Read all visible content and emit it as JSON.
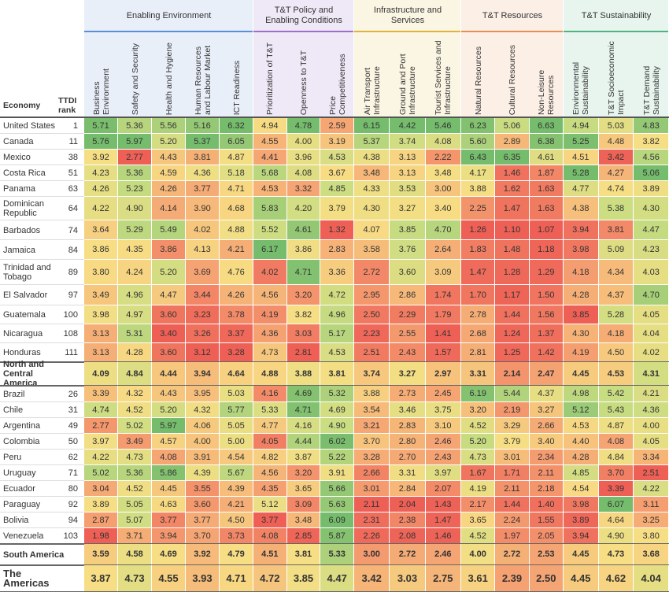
{
  "table": {
    "header": {
      "economy": "Economy",
      "rank": "TTDI rank"
    },
    "groups": [
      {
        "title": "Enabling Environment",
        "columns": [
          "Business Environment",
          "Safety and Security",
          "Health and Hygiene",
          "Human Resources and Labour Market",
          "ICT Readiness"
        ]
      },
      {
        "title": "T&T Policy and Enabling Conditions",
        "columns": [
          "Prioritization of T&T",
          "Openness to T&T",
          "Price Competitiveness"
        ]
      },
      {
        "title": "Infrastructure and Services",
        "columns": [
          "Air Transport Infrastructure",
          "Ground and Port Infrastructure",
          "Tourist Services and Infrastructure"
        ]
      },
      {
        "title": "T&T Resources",
        "columns": [
          "Natural Resources",
          "Cultural Resources",
          "Non-Leisure Resources"
        ]
      },
      {
        "title": "T&T Sustainability",
        "columns": [
          "Environmental Sustainability",
          "T&T Socioeconomic Impact",
          "T&T Demand Sustainability"
        ]
      }
    ],
    "rows": [
      {
        "economy": "United States",
        "rank": 1,
        "values": [
          "5.71",
          "5.36",
          "5.56",
          "5.16",
          "6.32",
          "4.94",
          "4.78",
          "2.59",
          "6.15",
          "4.42",
          "5.46",
          "6.23",
          "5.06",
          "6.63",
          "4.94",
          "5.03",
          "4.83"
        ]
      },
      {
        "economy": "Canada",
        "rank": 11,
        "values": [
          "5.76",
          "5.97",
          "5.20",
          "5.37",
          "6.05",
          "4.55",
          "4.00",
          "3.19",
          "5.37",
          "3.74",
          "4.08",
          "5.60",
          "2.89",
          "6.38",
          "5.25",
          "4.48",
          "3.82"
        ]
      },
      {
        "economy": "Mexico",
        "rank": 38,
        "values": [
          "3.92",
          "2.77",
          "4.43",
          "3.81",
          "4.87",
          "4.41",
          "3.96",
          "4.53",
          "4.38",
          "3.13",
          "2.22",
          "6.43",
          "6.35",
          "4.61",
          "4.51",
          "3.42",
          "4.56"
        ]
      },
      {
        "economy": "Costa Rica",
        "rank": 51,
        "values": [
          "4.23",
          "5.36",
          "4.59",
          "4.36",
          "5.18",
          "5.68",
          "4.08",
          "3.67",
          "3.48",
          "3.13",
          "3.48",
          "4.17",
          "1.46",
          "1.87",
          "5.28",
          "4.27",
          "5.06"
        ]
      },
      {
        "economy": "Panama",
        "rank": 63,
        "values": [
          "4.26",
          "5.23",
          "4.26",
          "3.77",
          "4.71",
          "4.53",
          "3.32",
          "4.85",
          "4.33",
          "3.53",
          "3.00",
          "3.88",
          "1.62",
          "1.63",
          "4.77",
          "4.74",
          "3.89"
        ]
      },
      {
        "economy": "Dominican Republic",
        "rank": 64,
        "values": [
          "4.22",
          "4.90",
          "4.14",
          "3.90",
          "4.68",
          "5.83",
          "4.20",
          "3.79",
          "4.30",
          "3.27",
          "3.40",
          "2.25",
          "1.47",
          "1.63",
          "4.38",
          "5.38",
          "4.30"
        ]
      },
      {
        "economy": "Barbados",
        "rank": 74,
        "values": [
          "3.64",
          "5.29",
          "5.49",
          "4.02",
          "4.88",
          "5.52",
          "4.61",
          "1.32",
          "4.07",
          "3.85",
          "4.70",
          "1.26",
          "1.10",
          "1.07",
          "3.94",
          "3.81",
          "4.47"
        ]
      },
      {
        "economy": "Jamaica",
        "rank": 84,
        "values": [
          "3.86",
          "4.35",
          "3.86",
          "4.13",
          "4.21",
          "6.17",
          "3.86",
          "2.83",
          "3.58",
          "3.76",
          "2.64",
          "1.83",
          "1.48",
          "1.18",
          "3.98",
          "5.09",
          "4.23"
        ]
      },
      {
        "economy": "Trinidad and Tobago",
        "rank": 89,
        "values": [
          "3.80",
          "4.24",
          "5.20",
          "3.69",
          "4.76",
          "4.02",
          "4.71",
          "3.36",
          "2.72",
          "3.60",
          "3.09",
          "1.47",
          "1.28",
          "1.29",
          "4.18",
          "4.34",
          "4.03"
        ]
      },
      {
        "economy": "El Salvador",
        "rank": 97,
        "values": [
          "3.49",
          "4.96",
          "4.47",
          "3.44",
          "4.26",
          "4.56",
          "3.20",
          "4.72",
          "2.95",
          "2.86",
          "1.74",
          "1.70",
          "1.17",
          "1.50",
          "4.28",
          "4.37",
          "4.70"
        ]
      },
      {
        "economy": "Guatemala",
        "rank": 100,
        "values": [
          "3.98",
          "4.97",
          "3.60",
          "3.23",
          "3.78",
          "4.19",
          "3.82",
          "4.96",
          "2.50",
          "2.29",
          "1.79",
          "2.78",
          "1.44",
          "1.56",
          "3.85",
          "5.28",
          "4.05"
        ]
      },
      {
        "economy": "Nicaragua",
        "rank": 108,
        "values": [
          "3.13",
          "5.31",
          "3.40",
          "3.26",
          "3.37",
          "4.36",
          "3.03",
          "5.17",
          "2.23",
          "2.55",
          "1.41",
          "2.68",
          "1.24",
          "1.37",
          "4.30",
          "4.18",
          "4.04"
        ]
      },
      {
        "economy": "Honduras",
        "rank": 111,
        "values": [
          "3.13",
          "4.28",
          "3.60",
          "3.12",
          "3.28",
          "4.73",
          "2.81",
          "4.53",
          "2.51",
          "2.43",
          "1.57",
          "2.81",
          "1.25",
          "1.42",
          "4.19",
          "4.50",
          "4.02"
        ]
      },
      {
        "economy": "North and Central America",
        "rank": null,
        "values": [
          "4.09",
          "4.84",
          "4.44",
          "3.94",
          "4.64",
          "4.88",
          "3.88",
          "3.81",
          "3.74",
          "3.27",
          "2.97",
          "3.31",
          "2.14",
          "2.47",
          "4.45",
          "4.53",
          "4.31"
        ]
      },
      {
        "economy": "Brazil",
        "rank": 26,
        "values": [
          "3.39",
          "4.32",
          "4.43",
          "3.95",
          "5.03",
          "4.16",
          "4.69",
          "5.32",
          "3.88",
          "2.73",
          "2.45",
          "6.19",
          "5.44",
          "4.37",
          "4.98",
          "5.42",
          "4.21"
        ]
      },
      {
        "economy": "Chile",
        "rank": 31,
        "values": [
          "4.74",
          "4.52",
          "5.20",
          "4.32",
          "5.77",
          "5.33",
          "4.71",
          "4.69",
          "3.54",
          "3.46",
          "3.75",
          "3.20",
          "2.19",
          "3.27",
          "5.12",
          "5.43",
          "4.36"
        ]
      },
      {
        "economy": "Argentina",
        "rank": 49,
        "values": [
          "2.77",
          "5.02",
          "5.97",
          "4.06",
          "5.05",
          "4.77",
          "4.16",
          "4.90",
          "3.21",
          "2.83",
          "3.10",
          "4.52",
          "3.29",
          "2.66",
          "4.53",
          "4.87",
          "4.00"
        ]
      },
      {
        "economy": "Colombia",
        "rank": 50,
        "values": [
          "3.97",
          "3.49",
          "4.57",
          "4.00",
          "5.00",
          "4.05",
          "4.44",
          "6.02",
          "3.70",
          "2.80",
          "2.46",
          "5.20",
          "3.79",
          "3.40",
          "4.40",
          "4.08",
          "4.05"
        ]
      },
      {
        "economy": "Peru",
        "rank": 62,
        "values": [
          "4.22",
          "4.73",
          "4.08",
          "3.91",
          "4.54",
          "4.82",
          "3.87",
          "5.22",
          "3.28",
          "2.70",
          "2.43",
          "4.73",
          "3.01",
          "2.34",
          "4.28",
          "4.84",
          "3.34"
        ]
      },
      {
        "economy": "Uruguay",
        "rank": 71,
        "values": [
          "5.02",
          "5.36",
          "5.86",
          "4.39",
          "5.67",
          "4.56",
          "3.20",
          "3.91",
          "2.66",
          "3.31",
          "3.97",
          "1.67",
          "1.71",
          "2.11",
          "4.85",
          "3.70",
          "2.51"
        ]
      },
      {
        "economy": "Ecuador",
        "rank": 80,
        "values": [
          "3.04",
          "4.52",
          "4.45",
          "3.55",
          "4.39",
          "4.35",
          "3.65",
          "5.66",
          "3.01",
          "2.84",
          "2.07",
          "4.19",
          "2.11",
          "2.18",
          "4.54",
          "3.39",
          "4.22"
        ]
      },
      {
        "economy": "Paraguay",
        "rank": 92,
        "values": [
          "3.89",
          "5.05",
          "4.63",
          "3.60",
          "4.21",
          "5.12",
          "3.09",
          "5.63",
          "2.11",
          "2.04",
          "1.43",
          "2.17",
          "1.44",
          "1.40",
          "3.98",
          "6.07",
          "3.11"
        ]
      },
      {
        "economy": "Bolivia",
        "rank": 94,
        "values": [
          "2.87",
          "5.07",
          "3.77",
          "3.77",
          "4.50",
          "3.77",
          "3.48",
          "6.09",
          "2.31",
          "2.38",
          "1.47",
          "3.65",
          "2.24",
          "1.55",
          "3.89",
          "4.64",
          "3.25"
        ]
      },
      {
        "economy": "Venezuela",
        "rank": 103,
        "values": [
          "1.98",
          "3.71",
          "3.94",
          "3.70",
          "3.73",
          "4.08",
          "2.85",
          "5.87",
          "2.26",
          "2.08",
          "1.46",
          "4.52",
          "1.97",
          "2.05",
          "3.94",
          "4.90",
          "3.80"
        ]
      },
      {
        "economy": "South America",
        "rank": null,
        "values": [
          "3.59",
          "4.58",
          "4.69",
          "3.92",
          "4.79",
          "4.51",
          "3.81",
          "5.33",
          "3.00",
          "2.72",
          "2.46",
          "4.00",
          "2.72",
          "2.53",
          "4.45",
          "4.73",
          "3.68"
        ]
      },
      {
        "economy": "The Americas",
        "rank": null,
        "values": [
          "3.87",
          "4.73",
          "4.55",
          "3.93",
          "4.71",
          "4.72",
          "3.85",
          "4.47",
          "3.42",
          "3.03",
          "2.75",
          "3.61",
          "2.39",
          "2.50",
          "4.45",
          "4.62",
          "4.04"
        ]
      }
    ]
  }
}
